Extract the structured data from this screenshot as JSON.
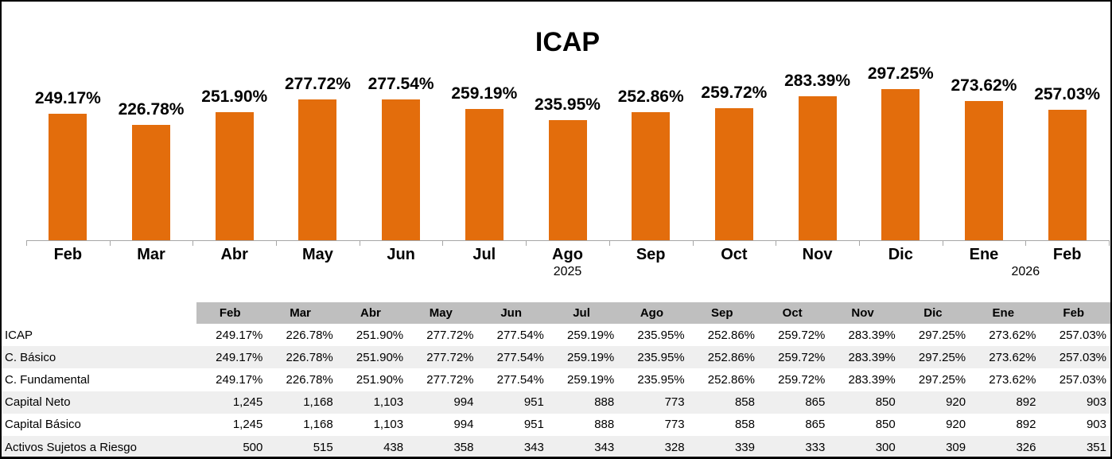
{
  "colors": {
    "bar": "#E36D0C",
    "axis": "#A6A6A6",
    "table_header_bg": "#BFBFBF",
    "table_stripe_bg": "#EFEFEF",
    "text": "#000000",
    "background": "#FFFFFF",
    "frame_border": "#000000"
  },
  "chart_data": {
    "type": "bar",
    "title": "ICAP",
    "categories": [
      "Feb",
      "Mar",
      "Abr",
      "May",
      "Jun",
      "Jul",
      "Ago",
      "Sep",
      "Oct",
      "Nov",
      "Dic",
      "Ene",
      "Feb"
    ],
    "values": [
      249.17,
      226.78,
      251.9,
      277.72,
      277.54,
      259.19,
      235.95,
      252.86,
      259.72,
      283.39,
      297.25,
      273.62,
      257.03
    ],
    "value_labels": [
      "249.17%",
      "226.78%",
      "251.90%",
      "277.72%",
      "277.54%",
      "259.19%",
      "235.95%",
      "252.86%",
      "259.72%",
      "283.39%",
      "297.25%",
      "273.62%",
      "257.03%"
    ],
    "year_labels": [
      {
        "text": "2025",
        "anchor_index": 6
      },
      {
        "text": "2026",
        "anchor_index": 11.5
      }
    ],
    "xlabel": "",
    "ylabel": "",
    "ylim": [
      0,
      350
    ],
    "grid": false,
    "legend": false
  },
  "table": {
    "columns": [
      "Feb",
      "Mar",
      "Abr",
      "May",
      "Jun",
      "Jul",
      "Ago",
      "Sep",
      "Oct",
      "Nov",
      "Dic",
      "Ene",
      "Feb"
    ],
    "rows": [
      {
        "label": "ICAP",
        "values": [
          "249.17%",
          "226.78%",
          "251.90%",
          "277.72%",
          "277.54%",
          "259.19%",
          "235.95%",
          "252.86%",
          "259.72%",
          "283.39%",
          "297.25%",
          "273.62%",
          "257.03%"
        ]
      },
      {
        "label": "C. Básico",
        "values": [
          "249.17%",
          "226.78%",
          "251.90%",
          "277.72%",
          "277.54%",
          "259.19%",
          "235.95%",
          "252.86%",
          "259.72%",
          "283.39%",
          "297.25%",
          "273.62%",
          "257.03%"
        ]
      },
      {
        "label": "C. Fundamental",
        "values": [
          "249.17%",
          "226.78%",
          "251.90%",
          "277.72%",
          "277.54%",
          "259.19%",
          "235.95%",
          "252.86%",
          "259.72%",
          "283.39%",
          "297.25%",
          "273.62%",
          "257.03%"
        ]
      },
      {
        "label": "Capital Neto",
        "values": [
          "1,245",
          "1,168",
          "1,103",
          "994",
          "951",
          "888",
          "773",
          "858",
          "865",
          "850",
          "920",
          "892",
          "903"
        ]
      },
      {
        "label": "Capital Básico",
        "values": [
          "1,245",
          "1,168",
          "1,103",
          "994",
          "951",
          "888",
          "773",
          "858",
          "865",
          "850",
          "920",
          "892",
          "903"
        ]
      },
      {
        "label": "Activos Sujetos a Riesgo",
        "values": [
          "500",
          "515",
          "438",
          "358",
          "343",
          "343",
          "328",
          "339",
          "333",
          "300",
          "309",
          "326",
          "351"
        ]
      }
    ]
  }
}
